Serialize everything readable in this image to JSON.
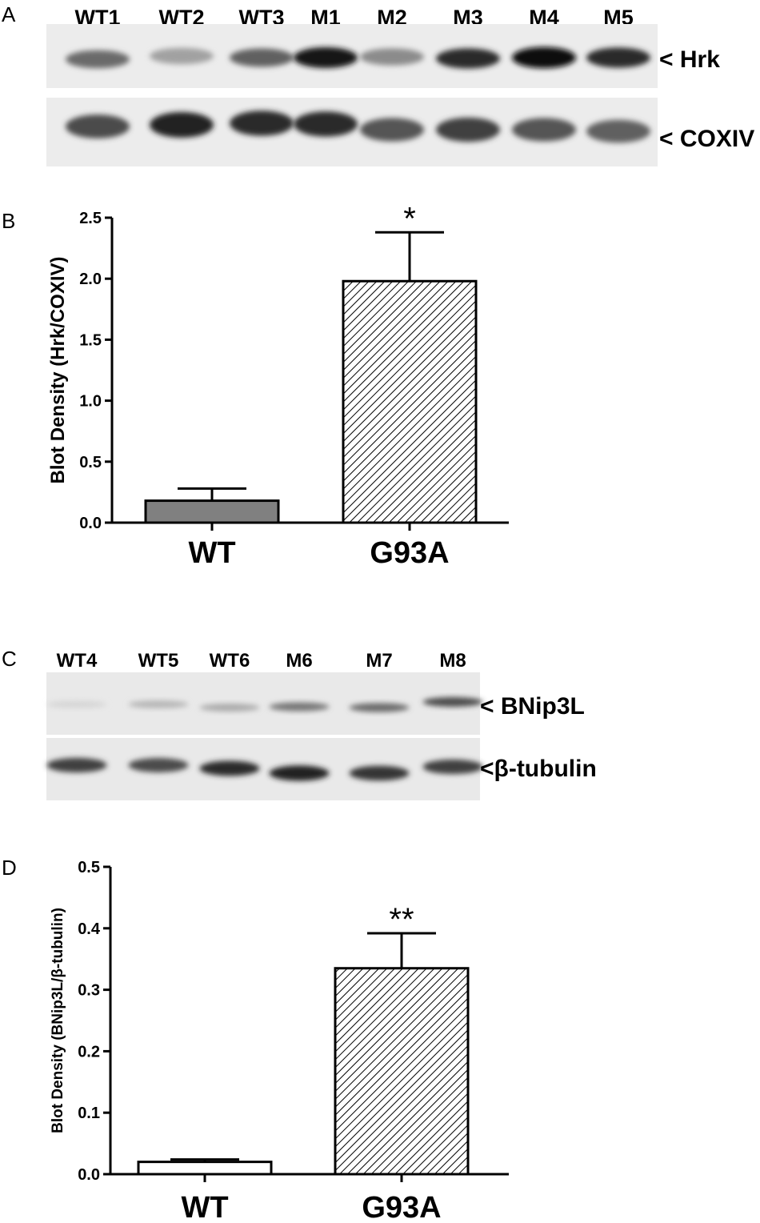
{
  "panels": {
    "A": {
      "letter": "A",
      "lanes": [
        "WT1",
        "WT2",
        "WT3",
        "M1",
        "M2",
        "M3",
        "M4",
        "M5"
      ],
      "rows": [
        {
          "label": "< Hrk",
          "intensity": [
            0.55,
            0.3,
            0.6,
            0.95,
            0.4,
            0.85,
            1.0,
            0.85
          ]
        },
        {
          "label": "< COXIV",
          "intensity": [
            0.7,
            0.9,
            0.85,
            0.85,
            0.65,
            0.75,
            0.65,
            0.6
          ]
        }
      ]
    },
    "C": {
      "letter": "C",
      "lanes": [
        "WT4",
        "WT5",
        "WT6",
        "M6",
        "M7",
        "M8"
      ],
      "rows": [
        {
          "label": "< BNip3L",
          "intensity": [
            0.05,
            0.2,
            0.25,
            0.5,
            0.55,
            0.7
          ]
        },
        {
          "label": "<β-tubulin",
          "intensity": [
            0.75,
            0.7,
            0.85,
            0.9,
            0.8,
            0.75
          ]
        }
      ]
    }
  },
  "chart_data": [
    {
      "panel": "B",
      "type": "bar",
      "categories": [
        "WT",
        "G93A"
      ],
      "values": [
        0.18,
        1.98
      ],
      "errors": [
        0.1,
        0.4
      ],
      "fills": [
        "#808080",
        "hatch"
      ],
      "significance": [
        "",
        "*"
      ],
      "ylabel": "Blot Density (Hrk/COXIV)",
      "ylim": [
        0,
        2.5
      ],
      "yticks": [
        "0.0",
        "0.5",
        "1.0",
        "1.5",
        "2.0",
        "2.5"
      ]
    },
    {
      "panel": "D",
      "type": "bar",
      "categories": [
        "WT",
        "G93A"
      ],
      "values": [
        0.02,
        0.335
      ],
      "errors": [
        0.004,
        0.057
      ],
      "fills": [
        "#ffffff",
        "hatch"
      ],
      "significance": [
        "",
        "**"
      ],
      "ylabel": "Blot Density (BNip3L/β-tubulin)",
      "ylim": [
        0,
        0.5
      ],
      "yticks": [
        "0.0",
        "0.1",
        "0.2",
        "0.3",
        "0.4",
        "0.5"
      ]
    }
  ]
}
